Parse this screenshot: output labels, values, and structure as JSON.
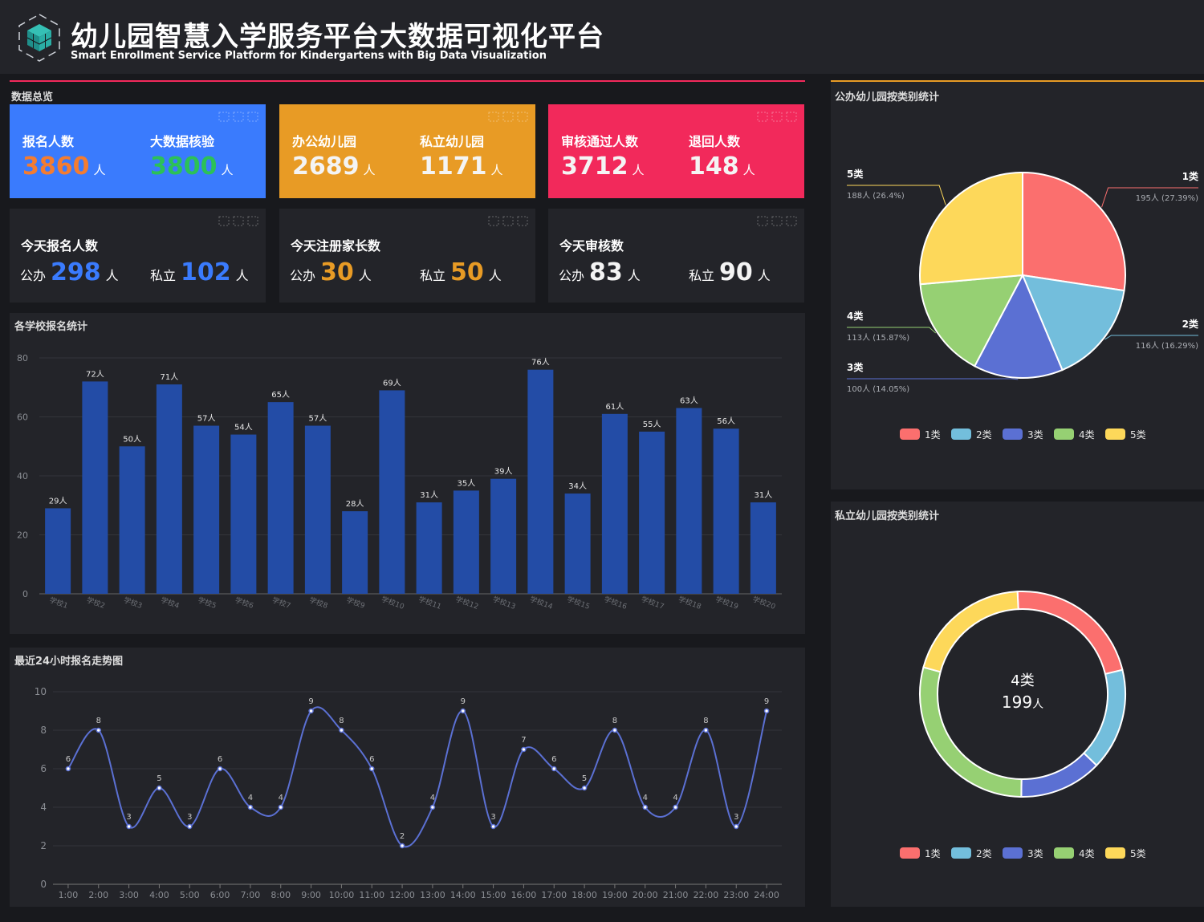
{
  "header": {
    "title": "幼儿园智慧入学服务平台大数据可视化平台",
    "subtitle": "Smart Enrollment Service Platform for Kindergartens with Big Data Visualization"
  },
  "colors": {
    "blue": "#3a7bfd",
    "orange": "#e89b25",
    "red": "#f2295b",
    "orange_text": "#f47c30",
    "green_text": "#2cc157",
    "pie": [
      "#fb6f6e",
      "#73bedc",
      "#5b70d3",
      "#96d073",
      "#fdd85a"
    ],
    "bar": "#234ca6",
    "line": "#5b70d3"
  },
  "overview": {
    "title": "数据总览",
    "cards": [
      {
        "label1": "报名人数",
        "value1": "3860",
        "label2": "大数据核验",
        "value2": "3800",
        "unit": "人"
      },
      {
        "label1": "办公幼儿园",
        "value1": "2689",
        "label2": "私立幼儿园",
        "value2": "1171",
        "unit": "人"
      },
      {
        "label1": "审核通过人数",
        "value1": "3712",
        "label2": "退回人数",
        "value2": "148",
        "unit": "人"
      }
    ],
    "today": [
      {
        "label": "今天报名人数",
        "pub_label": "公办",
        "pub": "298",
        "pri_label": "私立",
        "pri": "102",
        "unit": "人"
      },
      {
        "label": "今天注册家长数",
        "pub_label": "公办",
        "pub": "30",
        "pri_label": "私立",
        "pri": "50",
        "unit": "人"
      },
      {
        "label": "今天审核数",
        "pub_label": "公办",
        "pub": "83",
        "pri_label": "私立",
        "pri": "90",
        "unit": "人"
      }
    ]
  },
  "school_panel": {
    "title": "各学校报名统计"
  },
  "trend_panel": {
    "title": "最近24小时报名走势图"
  },
  "public_panel": {
    "title": "公办幼儿园按类别统计"
  },
  "private_panel": {
    "title": "私立幼儿园按类别统计",
    "center_label": "4类",
    "center_value": "199",
    "center_unit": "人"
  },
  "chart_data": [
    {
      "type": "bar",
      "title": "各学校报名统计",
      "categories": [
        "学校1",
        "学校2",
        "学校3",
        "学校4",
        "学校5",
        "学校6",
        "学校7",
        "学校8",
        "学校9",
        "学校10",
        "学校11",
        "学校12",
        "学校13",
        "学校14",
        "学校15",
        "学校16",
        "学校17",
        "学校18",
        "学校19",
        "学校20"
      ],
      "values": [
        29,
        72,
        50,
        71,
        57,
        54,
        65,
        57,
        28,
        69,
        31,
        35,
        39,
        76,
        34,
        61,
        55,
        63,
        56,
        31
      ],
      "value_suffix": "人",
      "ylim": [
        0,
        80
      ],
      "yticks": [
        0,
        20,
        40,
        60,
        80
      ],
      "grid": true
    },
    {
      "type": "line",
      "title": "最近24小时报名走势图",
      "x": [
        "1:00",
        "2:00",
        "3:00",
        "4:00",
        "5:00",
        "6:00",
        "7:00",
        "8:00",
        "9:00",
        "10:00",
        "11:00",
        "12:00",
        "13:00",
        "14:00",
        "15:00",
        "16:00",
        "17:00",
        "18:00",
        "19:00",
        "20:00",
        "21:00",
        "22:00",
        "23:00",
        "24:00"
      ],
      "values": [
        6,
        8,
        3,
        5,
        3,
        6,
        4,
        4,
        9,
        8,
        6,
        2,
        4,
        9,
        3,
        7,
        6,
        5,
        8,
        4,
        4,
        8,
        3,
        9
      ],
      "ylim": [
        0,
        10
      ],
      "yticks": [
        0,
        2,
        4,
        6,
        8,
        10
      ],
      "smooth": true,
      "grid": true
    },
    {
      "type": "pie",
      "title": "公办幼儿园按类别统计",
      "labels": [
        "1类",
        "2类",
        "3类",
        "4类",
        "5类"
      ],
      "values": [
        195,
        116,
        100,
        113,
        188
      ],
      "percent_labels": [
        "195人 (27.39%)",
        "116人 (16.29%)",
        "100人 (14.05%)",
        "113人 (15.87%)",
        "188人 (26.4%)"
      ],
      "legend": "bottom"
    },
    {
      "type": "pie",
      "donut": true,
      "title": "私立幼儿园按类别统计",
      "labels": [
        "1类",
        "2类",
        "3类",
        "4类",
        "5类"
      ],
      "values": [
        0.22,
        0.16,
        0.13,
        0.29,
        0.2
      ],
      "highlight": {
        "label": "4类",
        "value": "199人"
      },
      "legend": "bottom"
    }
  ]
}
